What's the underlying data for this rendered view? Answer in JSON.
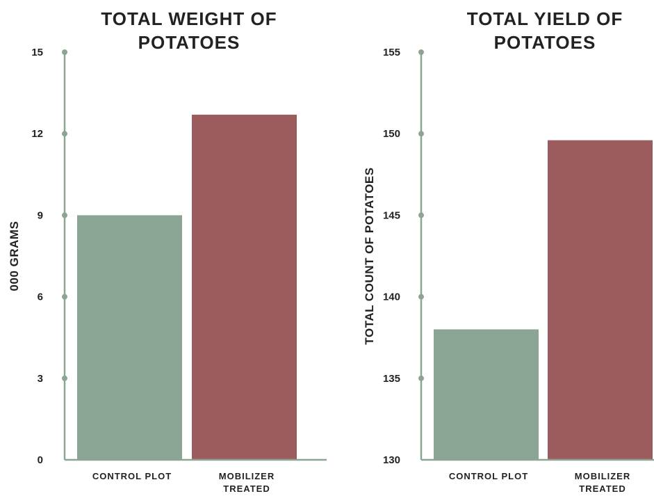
{
  "colors": {
    "axis": "#8ba592",
    "control": "#8aa593",
    "treated": "#9c5b5d",
    "text": "#222222"
  },
  "chart_data": [
    {
      "type": "bar",
      "title_lines": [
        "TOTAL WEIGHT OF",
        "POTATOES"
      ],
      "xlabel": "",
      "ylabel": "000 GRAMS",
      "categories": [
        [
          "CONTROL PLOT"
        ],
        [
          "MOBILIZER",
          "TREATED"
        ]
      ],
      "values": [
        9,
        12.7
      ],
      "ylim": [
        0,
        15
      ],
      "yticks": [
        0,
        3,
        6,
        9,
        12,
        15
      ],
      "grid": false,
      "legend": "none"
    },
    {
      "type": "bar",
      "title_lines": [
        "TOTAL YIELD OF",
        "POTATOES"
      ],
      "xlabel": "",
      "ylabel": "TOTAL COUNT OF POTATOES",
      "categories": [
        [
          "CONTROL PLOT"
        ],
        [
          "MOBILIZER",
          "TREATED"
        ]
      ],
      "values": [
        138,
        149.6
      ],
      "ylim": [
        130,
        155
      ],
      "yticks": [
        130,
        135,
        140,
        145,
        150,
        155
      ],
      "grid": false,
      "legend": "none"
    }
  ]
}
